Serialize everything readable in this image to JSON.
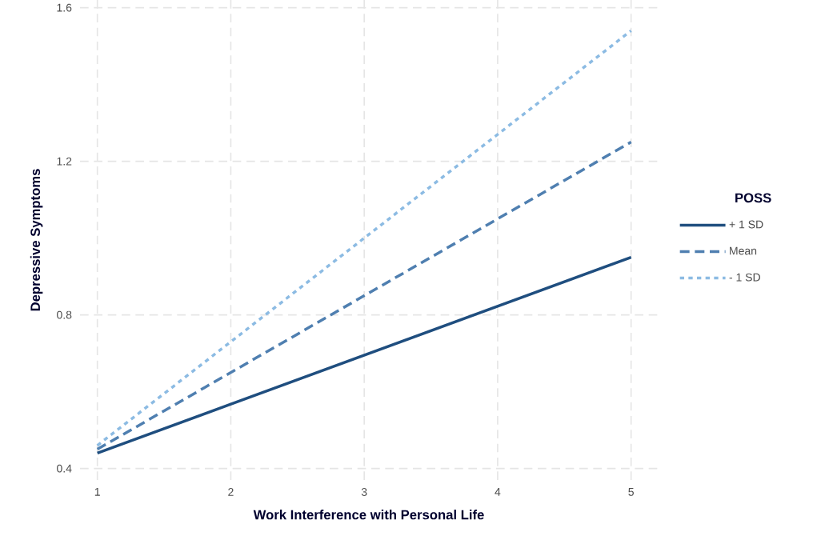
{
  "chart_data": {
    "type": "line",
    "xlabel": "Work Interference with Personal Life",
    "ylabel": "Depressive Symptoms",
    "legend_title": "POSS",
    "x": [
      1,
      5
    ],
    "series": [
      {
        "name": "+ 1 SD",
        "color": "#1f4e7f",
        "values": [
          0.44,
          0.95
        ],
        "line_style": "solid"
      },
      {
        "name": "Mean",
        "color": "#4f7fb0",
        "values": [
          0.45,
          1.25
        ],
        "line_style": "dashed"
      },
      {
        "name": "- 1 SD",
        "color": "#8cbbe3",
        "values": [
          0.46,
          1.54
        ],
        "line_style": "dotted"
      }
    ],
    "xlim": [
      0.87,
      5.2
    ],
    "ylim": [
      0.37,
      1.62
    ],
    "xticks": [
      1,
      2,
      3,
      4,
      5
    ],
    "yticks": [
      0.4,
      0.8,
      1.2,
      1.6
    ],
    "grid": true,
    "legend": "right",
    "marker": "none"
  }
}
